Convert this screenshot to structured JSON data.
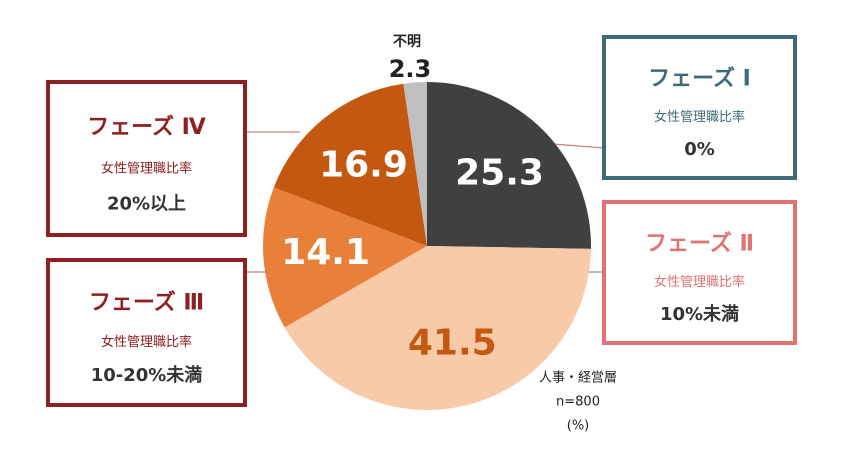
{
  "chart_data": {
    "type": "pie",
    "categories": [
      "フェーズ Ⅰ",
      "フェーズ Ⅱ",
      "フェーズ Ⅲ",
      "フェーズ Ⅳ",
      "不明"
    ],
    "values": [
      25.3,
      41.5,
      14.1,
      16.9,
      2.3
    ],
    "colors": [
      "#404040",
      "#f8caa8",
      "#e9803a",
      "#c45811",
      "#bfbfbf"
    ],
    "label_colors": [
      "#ffffff",
      "#c45811",
      "#ffffff",
      "#ffffff",
      "#222222"
    ],
    "box_colors": [
      "#3e6b79",
      "#e07272",
      "#8e1f22",
      "#8e1f22",
      null
    ],
    "descriptions": [
      "女性管理職比率",
      "女性管理職比率",
      "女性管理職比率",
      "女性管理職比率",
      null
    ],
    "ratios": [
      "0%",
      "10%未満",
      "10-20%未満",
      "20%以上",
      null
    ],
    "notes": [
      "人事・経営層",
      "n=800",
      "(%)"
    ]
  }
}
